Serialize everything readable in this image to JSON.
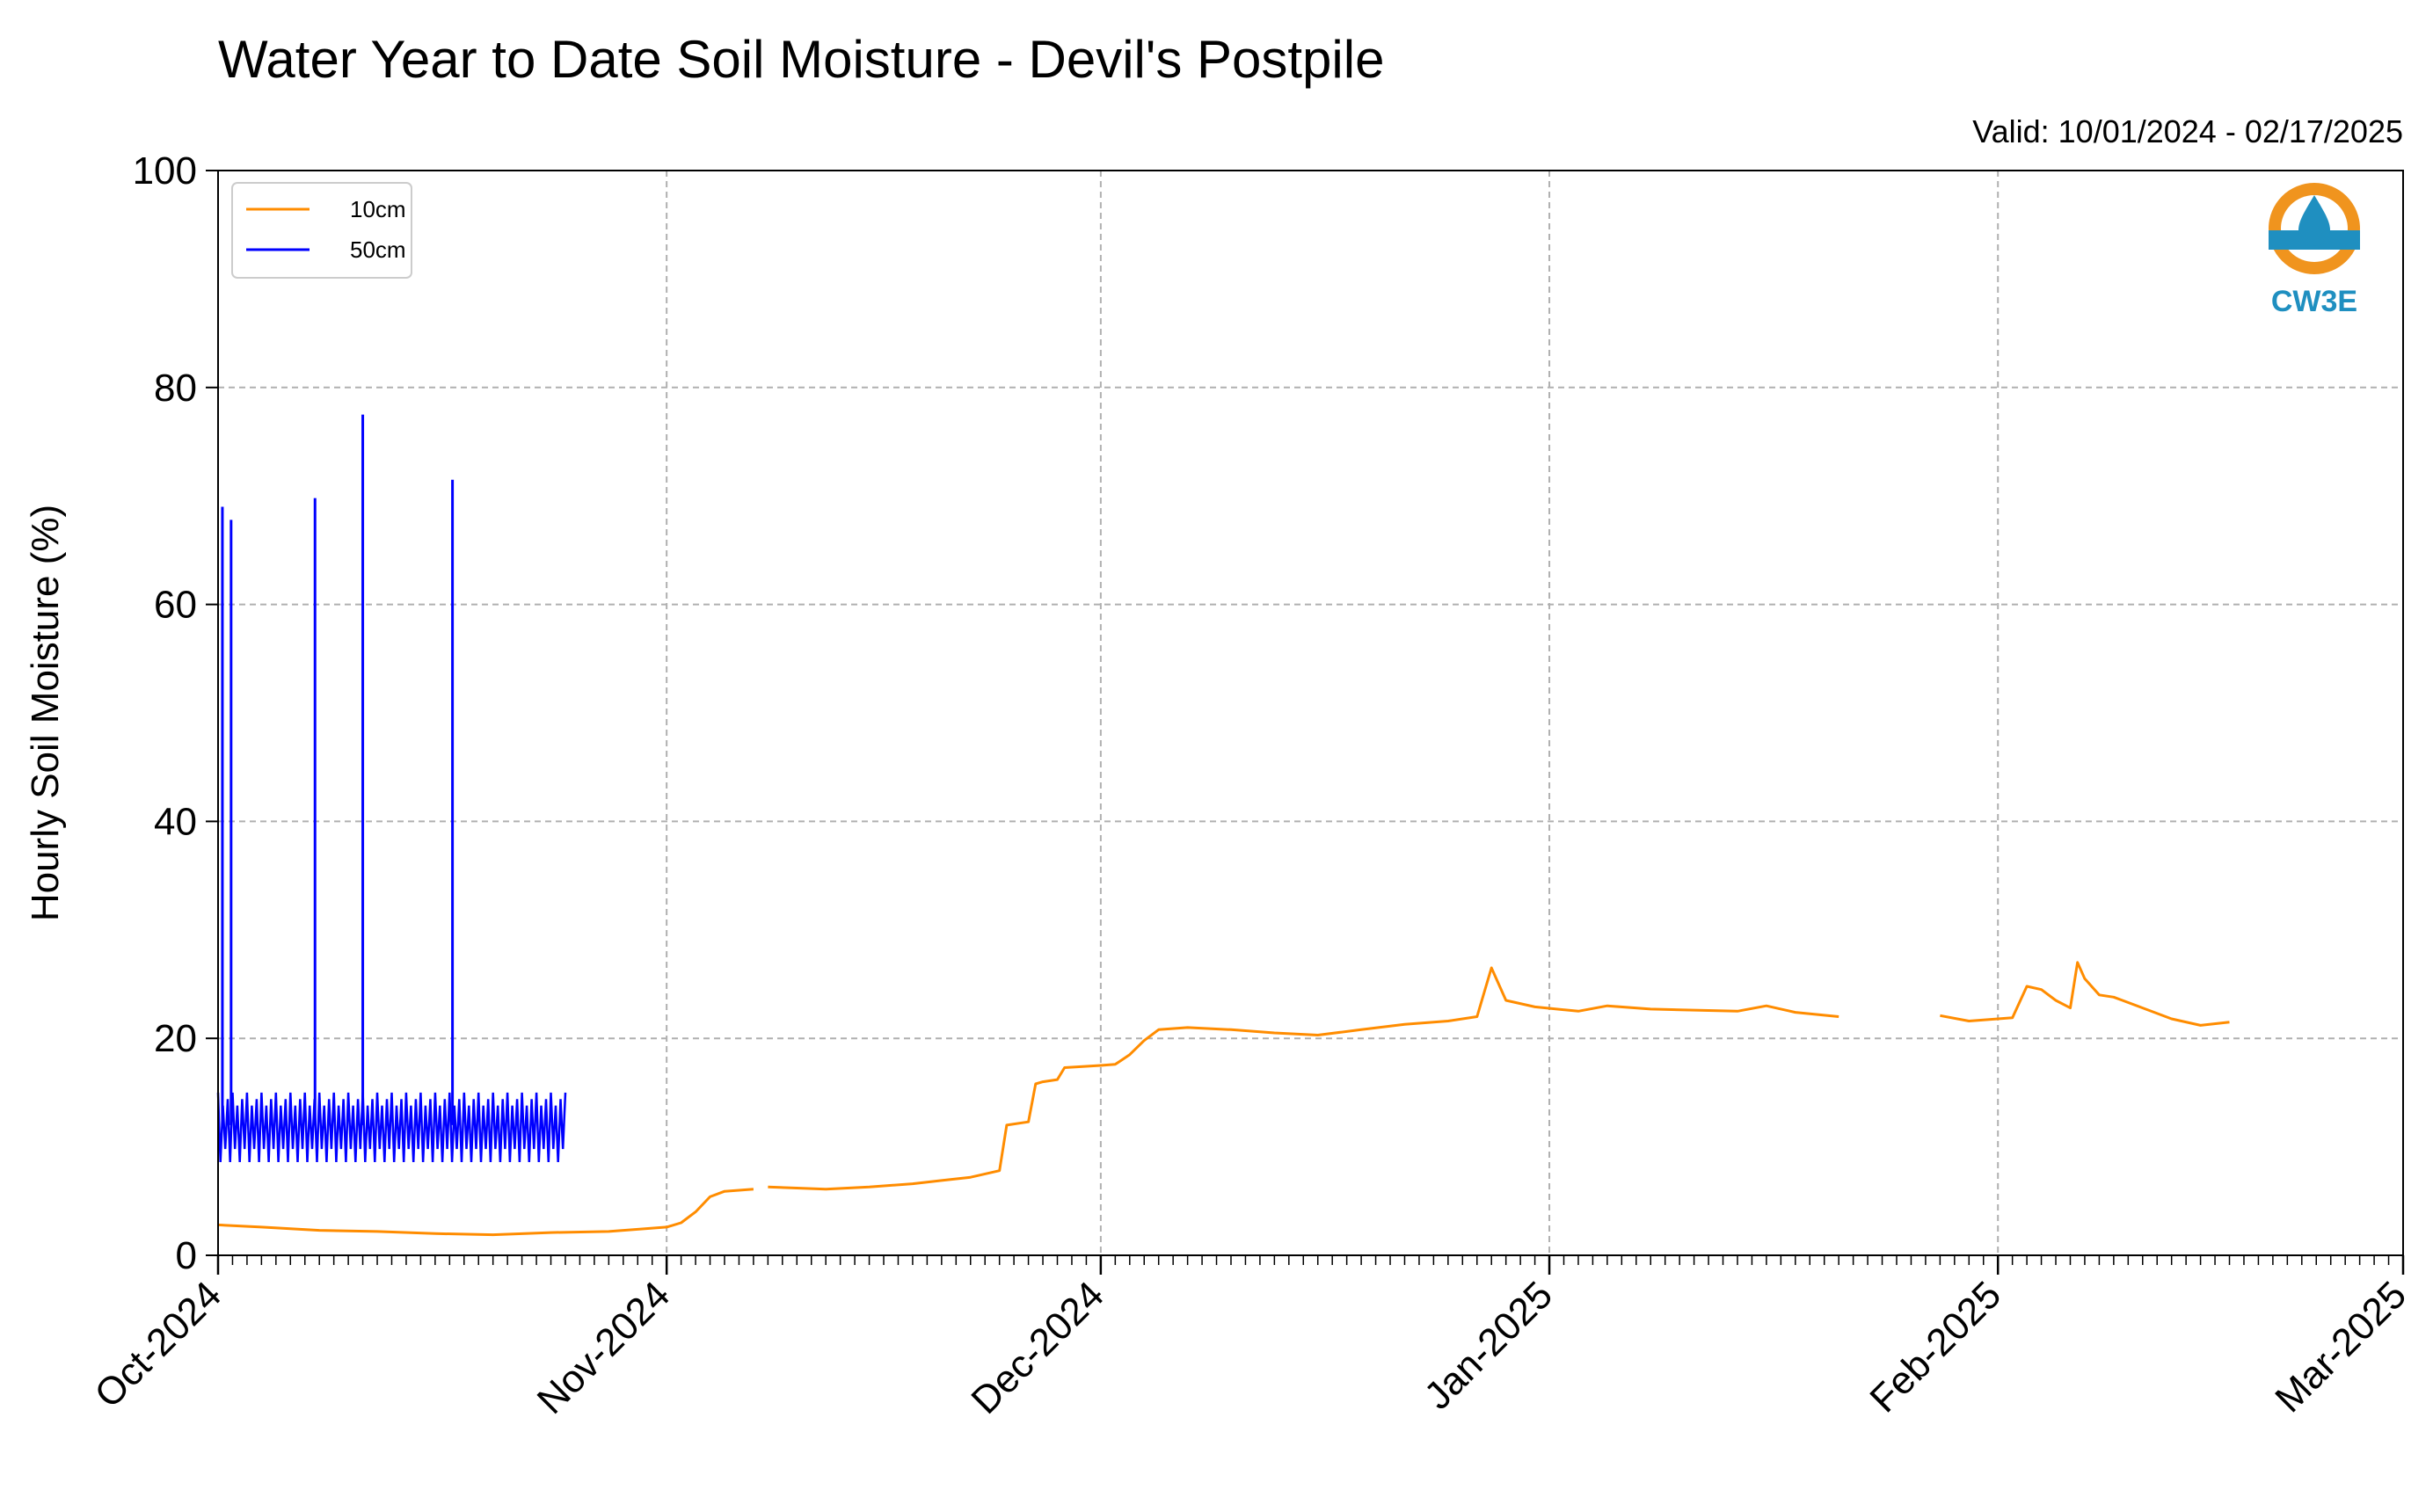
{
  "chart_data": {
    "type": "line",
    "title": "Water Year to Date Soil Moisture - Devil's Postpile",
    "subtitle": "Valid: 10/01/2024 - 02/17/2025",
    "xlabel": "",
    "ylabel": "Hourly Soil Moisture (%)",
    "xlim": [
      "2024-10-01",
      "2025-03-01"
    ],
    "ylim": [
      0,
      100
    ],
    "yticks": [
      0,
      20,
      40,
      60,
      80,
      100
    ],
    "xticks": [
      {
        "date": "2024-10-01",
        "label": "Oct-2024"
      },
      {
        "date": "2024-11-01",
        "label": "Nov-2024"
      },
      {
        "date": "2024-12-01",
        "label": "Dec-2024"
      },
      {
        "date": "2025-01-01",
        "label": "Jan-2025"
      },
      {
        "date": "2025-02-01",
        "label": "Feb-2025"
      },
      {
        "date": "2025-03-01",
        "label": "Mar-2025"
      }
    ],
    "grid": true,
    "legend_position": "top-left",
    "logo_text": "CW3E",
    "series": [
      {
        "name": "10cm",
        "color": "#ff8c00",
        "segments": [
          [
            [
              "2024-10-01",
              2.8
            ],
            [
              "2024-10-04",
              2.6
            ],
            [
              "2024-10-08",
              2.3
            ],
            [
              "2024-10-12",
              2.2
            ],
            [
              "2024-10-16",
              2.0
            ],
            [
              "2024-10-20",
              1.9
            ],
            [
              "2024-10-24",
              2.1
            ],
            [
              "2024-10-28",
              2.2
            ],
            [
              "2024-11-01",
              2.6
            ],
            [
              "2024-11-02",
              3.0
            ],
            [
              "2024-11-03",
              4.0
            ],
            [
              "2024-11-04",
              5.4
            ],
            [
              "2024-11-05",
              5.9
            ],
            [
              "2024-11-07",
              6.1
            ]
          ],
          [
            [
              "2024-11-08",
              6.3
            ],
            [
              "2024-11-10",
              6.2
            ],
            [
              "2024-11-12",
              6.1
            ],
            [
              "2024-11-15",
              6.3
            ],
            [
              "2024-11-18",
              6.6
            ],
            [
              "2024-11-20",
              6.9
            ],
            [
              "2024-11-22",
              7.2
            ],
            [
              "2024-11-24",
              7.8
            ],
            [
              "2024-11-24.5",
              12.0
            ],
            [
              "2024-11-26",
              12.3
            ],
            [
              "2024-11-26.5",
              15.8
            ],
            [
              "2024-11-27",
              16.0
            ],
            [
              "2024-11-28",
              16.2
            ],
            [
              "2024-11-28.5",
              17.3
            ],
            [
              "2024-12-01",
              17.5
            ],
            [
              "2024-12-02",
              17.6
            ],
            [
              "2024-12-03",
              18.5
            ],
            [
              "2024-12-04",
              19.8
            ],
            [
              "2024-12-05",
              20.8
            ],
            [
              "2024-12-07",
              21.0
            ],
            [
              "2024-12-10",
              20.8
            ],
            [
              "2024-12-13",
              20.5
            ],
            [
              "2024-12-16",
              20.3
            ],
            [
              "2024-12-19",
              20.8
            ],
            [
              "2024-12-22",
              21.3
            ],
            [
              "2024-12-25",
              21.6
            ],
            [
              "2024-12-27",
              22.0
            ],
            [
              "2024-12-28",
              26.5
            ],
            [
              "2024-12-29",
              23.5
            ],
            [
              "2024-12-31",
              22.9
            ],
            [
              "2025-01-03",
              22.5
            ],
            [
              "2025-01-05",
              23.0
            ],
            [
              "2025-01-08",
              22.7
            ],
            [
              "2025-01-11",
              22.6
            ],
            [
              "2025-01-14",
              22.5
            ],
            [
              "2025-01-16",
              23.0
            ],
            [
              "2025-01-18",
              22.4
            ],
            [
              "2025-01-21",
              22.0
            ]
          ],
          [
            [
              "2025-01-28",
              22.1
            ],
            [
              "2025-01-30",
              21.6
            ],
            [
              "2025-02-01",
              21.8
            ],
            [
              "2025-02-02",
              21.9
            ],
            [
              "2025-02-03",
              24.8
            ],
            [
              "2025-02-04",
              24.5
            ],
            [
              "2025-02-05",
              23.5
            ],
            [
              "2025-02-06",
              22.8
            ],
            [
              "2025-02-06.5",
              27.0
            ],
            [
              "2025-02-07",
              25.5
            ],
            [
              "2025-02-08",
              24.0
            ],
            [
              "2025-02-09",
              23.8
            ],
            [
              "2025-02-11",
              22.8
            ],
            [
              "2025-02-13",
              21.8
            ],
            [
              "2025-02-15",
              21.2
            ],
            [
              "2025-02-17",
              21.5
            ]
          ]
        ]
      },
      {
        "name": "50cm",
        "color": "#0000ff",
        "spikes": [
          [
            "2024-10-01.3",
            69.0
          ],
          [
            "2024-10-01.9",
            67.8
          ],
          [
            "2024-10-07.7",
            69.8
          ],
          [
            "2024-10-11",
            77.5
          ],
          [
            "2024-10-17.2",
            71.5
          ]
        ],
        "band": {
          "start": "2024-10-01",
          "end": "2024-10-25",
          "min": 8.0,
          "max": 15.0
        }
      }
    ]
  }
}
